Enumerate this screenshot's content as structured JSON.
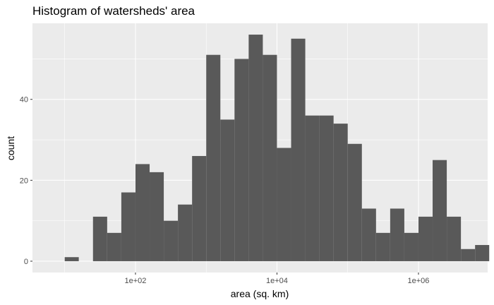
{
  "chart_data": {
    "type": "bar",
    "title": "Histogram of watersheds' area",
    "xlabel": "area (sq. km)",
    "ylabel": "count",
    "x_scale": "log10",
    "x_ticks": [
      {
        "value": 100,
        "label": "1e+02"
      },
      {
        "value": 10000,
        "label": "1e+04"
      },
      {
        "value": 1000000,
        "label": "1e+06"
      }
    ],
    "y_ticks": [
      {
        "value": 0,
        "label": "0"
      },
      {
        "value": 20,
        "label": "20"
      },
      {
        "value": 40,
        "label": "40"
      }
    ],
    "xlim": [
      3.5,
      9500000
    ],
    "ylim": [
      -2.8,
      58.8
    ],
    "bin_edges": [
      10,
      15.8,
      25.1,
      39.8,
      63.1,
      100,
      158.5,
      251.2,
      398.1,
      631,
      1000,
      1584.9,
      2511.9,
      3981.1,
      6309.6,
      10000,
      15848.9,
      25118.9,
      39810.7,
      63095.7,
      100000,
      158489.3,
      251188.6,
      398107.2,
      630957.3,
      1000000,
      1584893.2,
      2511886.4,
      3981071.7,
      6309573.4
    ],
    "counts": [
      1,
      0,
      11,
      7,
      17,
      24,
      22,
      10,
      14,
      26,
      51,
      35,
      50,
      56,
      51,
      28,
      55,
      36,
      36,
      34,
      29,
      13,
      7,
      13,
      7,
      11,
      25,
      11,
      3,
      4
    ],
    "bar_color": "#595959",
    "panel_color": "#ebebeb",
    "grid": true,
    "legend": "none"
  }
}
